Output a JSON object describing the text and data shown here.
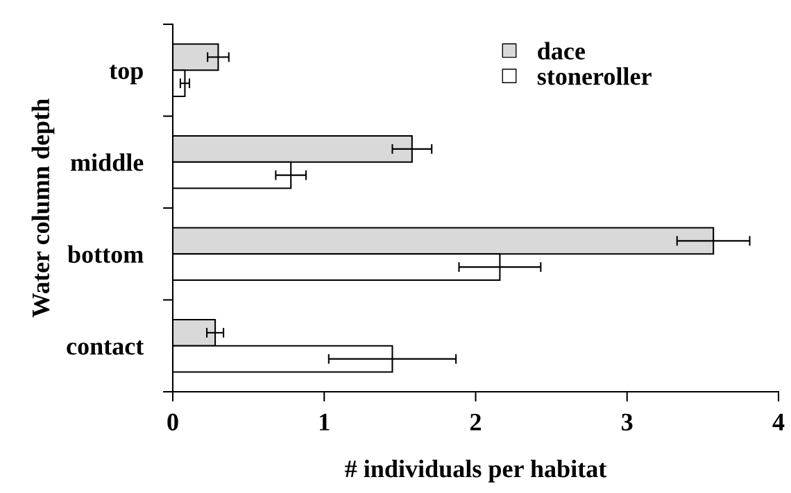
{
  "chart_data": {
    "type": "bar",
    "orientation": "horizontal",
    "xlabel": "# individuals per habitat",
    "ylabel": "Water column depth",
    "categories": [
      "top",
      "middle",
      "bottom",
      "contact"
    ],
    "series": [
      {
        "name": "dace",
        "color": "#d9d9d9",
        "values": [
          0.3,
          1.58,
          3.57,
          0.28
        ],
        "errors": [
          0.07,
          0.13,
          0.24,
          0.055
        ]
      },
      {
        "name": "stoneroller",
        "color": "#ffffff",
        "values": [
          0.08,
          0.78,
          2.16,
          1.45
        ],
        "errors": [
          0.03,
          0.1,
          0.27,
          0.42
        ]
      }
    ],
    "xlim": [
      0,
      4
    ],
    "xticks": [
      0,
      1,
      2,
      3,
      4
    ],
    "grid": false,
    "legend": "top right"
  }
}
